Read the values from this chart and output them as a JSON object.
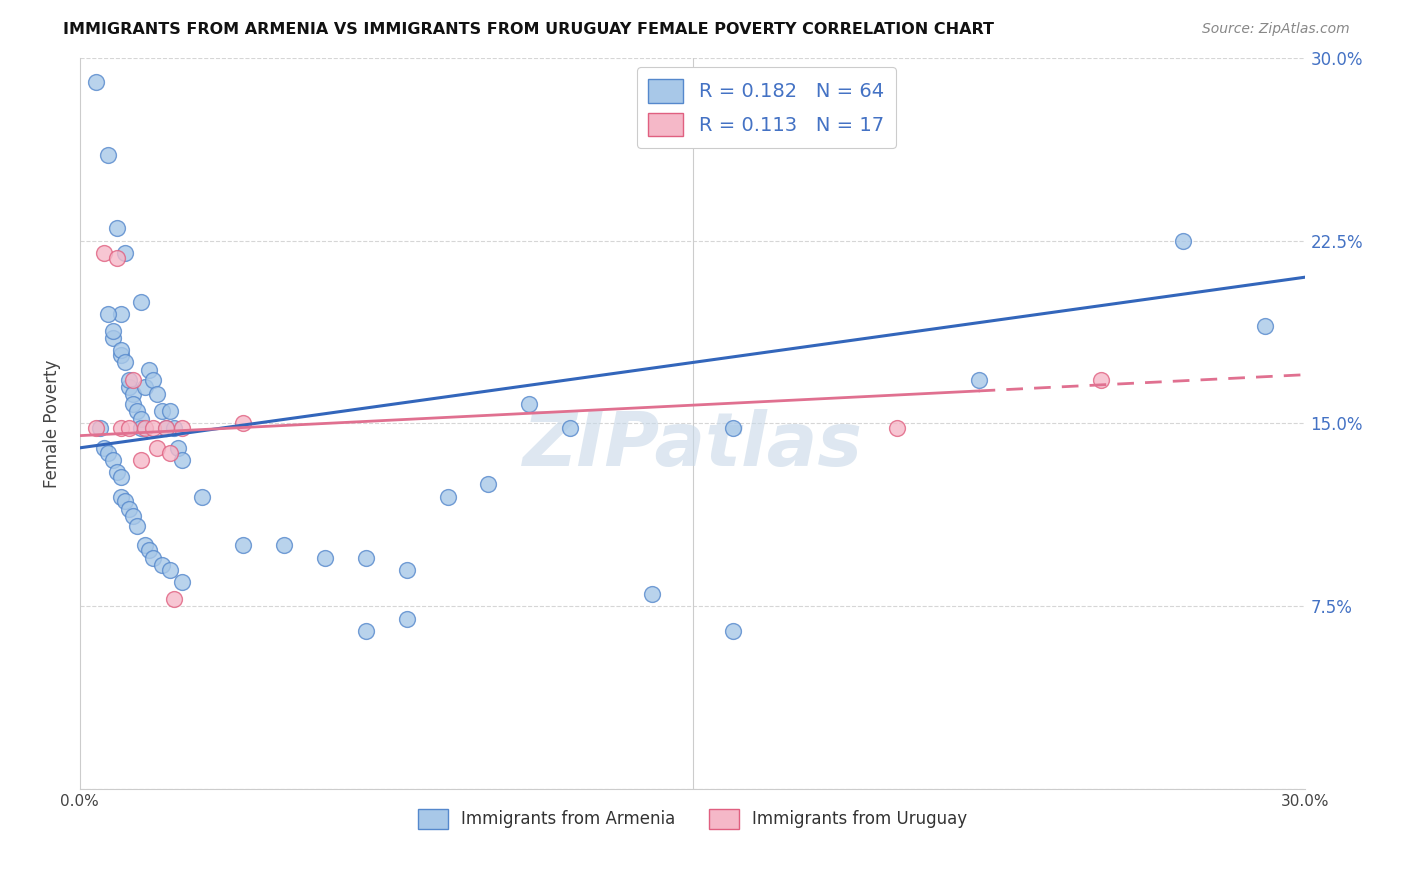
{
  "title": "IMMIGRANTS FROM ARMENIA VS IMMIGRANTS FROM URUGUAY FEMALE POVERTY CORRELATION CHART",
  "source": "Source: ZipAtlas.com",
  "ylabel": "Female Poverty",
  "xlim": [
    0,
    0.3
  ],
  "ylim": [
    0,
    0.3
  ],
  "xtick_vals": [
    0.0,
    0.05,
    0.1,
    0.15,
    0.2,
    0.25,
    0.3
  ],
  "xtick_labels": [
    "0.0%",
    "",
    "",
    "",
    "",
    "",
    "30.0%"
  ],
  "ytick_vals": [
    0.0,
    0.075,
    0.15,
    0.225,
    0.3
  ],
  "ytick_labels_right": [
    "",
    "7.5%",
    "15.0%",
    "22.5%",
    "30.0%"
  ],
  "armenia_R": 0.182,
  "armenia_N": 64,
  "uruguay_R": 0.113,
  "uruguay_N": 17,
  "armenia_color": "#a8c8e8",
  "uruguay_color": "#f5b8c8",
  "armenia_edge_color": "#5588cc",
  "uruguay_edge_color": "#e06080",
  "trend_armenia_color": "#3366bb",
  "trend_uruguay_color": "#e07090",
  "watermark": "ZIPatlas",
  "watermark_color": "#c8d8e8",
  "legend_text_color": "#4472c4",
  "armenia_trend_start_y": 0.14,
  "armenia_trend_end_y": 0.21,
  "uruguay_trend_start_y": 0.145,
  "uruguay_trend_end_y": 0.17,
  "arm_x": [
    0.004,
    0.007,
    0.009,
    0.011,
    0.015,
    0.008,
    0.01,
    0.01,
    0.012,
    0.007,
    0.008,
    0.01,
    0.011,
    0.012,
    0.013,
    0.013,
    0.014,
    0.015,
    0.015,
    0.016,
    0.017,
    0.018,
    0.019,
    0.02,
    0.021,
    0.022,
    0.023,
    0.024,
    0.025,
    0.005,
    0.006,
    0.007,
    0.008,
    0.009,
    0.01,
    0.01,
    0.011,
    0.012,
    0.013,
    0.014,
    0.016,
    0.017,
    0.018,
    0.02,
    0.022,
    0.025,
    0.03,
    0.04,
    0.05,
    0.06,
    0.07,
    0.08,
    0.09,
    0.1,
    0.12,
    0.14,
    0.16,
    0.07,
    0.08,
    0.11,
    0.16,
    0.22,
    0.27,
    0.29
  ],
  "arm_y": [
    0.29,
    0.26,
    0.23,
    0.22,
    0.2,
    0.185,
    0.195,
    0.178,
    0.165,
    0.195,
    0.188,
    0.18,
    0.175,
    0.168,
    0.162,
    0.158,
    0.155,
    0.152,
    0.148,
    0.165,
    0.172,
    0.168,
    0.162,
    0.155,
    0.148,
    0.155,
    0.148,
    0.14,
    0.135,
    0.148,
    0.14,
    0.138,
    0.135,
    0.13,
    0.128,
    0.12,
    0.118,
    0.115,
    0.112,
    0.108,
    0.1,
    0.098,
    0.095,
    0.092,
    0.09,
    0.085,
    0.12,
    0.1,
    0.1,
    0.095,
    0.095,
    0.09,
    0.12,
    0.125,
    0.148,
    0.08,
    0.065,
    0.065,
    0.07,
    0.158,
    0.148,
    0.168,
    0.225,
    0.19
  ],
  "uru_x": [
    0.004,
    0.006,
    0.009,
    0.01,
    0.012,
    0.013,
    0.015,
    0.016,
    0.018,
    0.019,
    0.021,
    0.022,
    0.023,
    0.025,
    0.04,
    0.2,
    0.25
  ],
  "uru_y": [
    0.148,
    0.22,
    0.218,
    0.148,
    0.148,
    0.168,
    0.135,
    0.148,
    0.148,
    0.14,
    0.148,
    0.138,
    0.078,
    0.148,
    0.15,
    0.148,
    0.168
  ]
}
